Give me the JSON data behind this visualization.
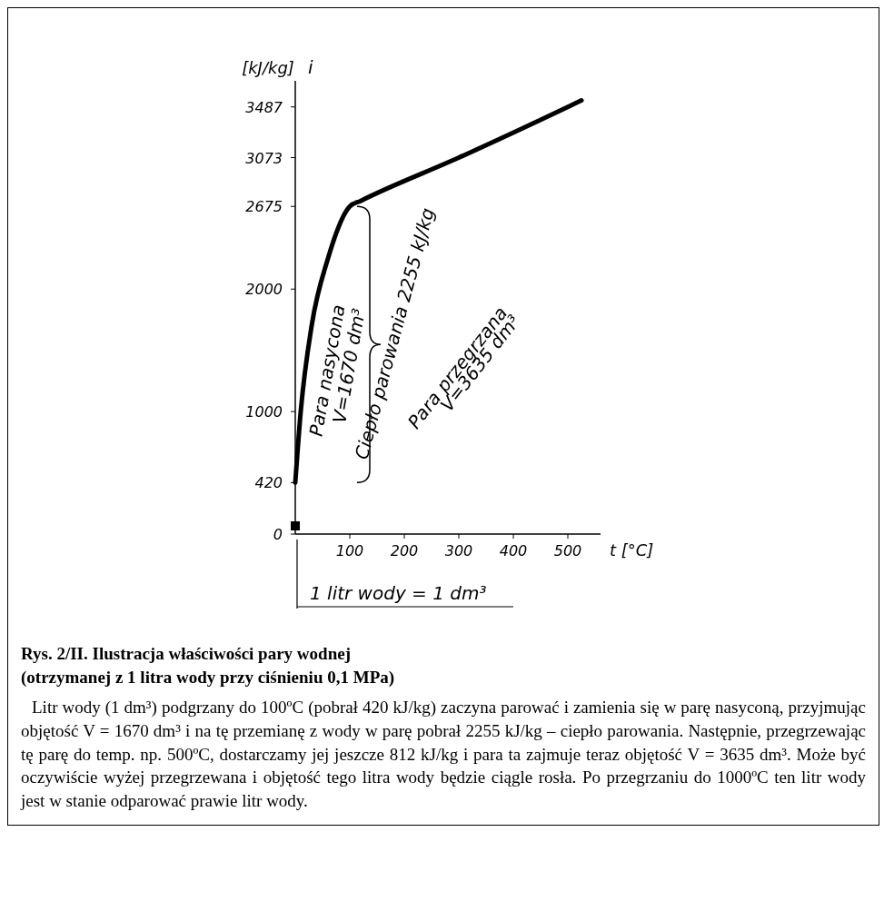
{
  "chart_data": {
    "type": "line",
    "title": "Rys. 2/II. Ilustracja właściwości pary wodnej",
    "subtitle": "(otrzymanej z 1 litra wody przy ciśnieniu 0,1 MPa)",
    "xlabel": "t [°C]",
    "ylabel": "[kJ/kg]",
    "x": [
      0,
      10,
      30,
      60,
      100,
      120,
      300,
      500,
      525
    ],
    "series": [
      {
        "color": "#000000",
        "values": [
          420,
          1000,
          1700,
          2250,
          2675,
          2720,
          3073,
          3487,
          3540
        ]
      }
    ],
    "xlim": [
      0,
      560
    ],
    "ylim": [
      0,
      3700
    ],
    "xticks": [
      100,
      200,
      300,
      400,
      500
    ],
    "yticks": [
      0,
      420,
      1000,
      2000,
      2675,
      3073,
      3487
    ],
    "marker": "none",
    "line_style": "solid",
    "grid": false,
    "annotations": [
      "i",
      "Para nasycona",
      "V=1670 dm³",
      "Ciepło parowania 2255 kJ/kg",
      "Para przegrzana",
      "V=3635 dm³",
      "1 litr wody = 1 dm³",
      "Litr wody (1 dm³) podgrzany do 100ºC (pobrał 420 kJ/kg) zaczyna parować i zamienia się w parę nasyconą, przyjmując objętość V = 1670 dm³ i na tę przemianę z wody w parę pobrał 2255 kJ/kg – ciepło parowania. Następnie, przegrzewając tę parę do temp. np. 500ºC, dostarczamy jej jeszcze 812 kJ/kg i para ta zajmuje teraz objętość V = 3635 dm³. Może być oczywiście wyżej przegrzewana i objętość tego litra wody będzie ciągle rosła. Po przegrzaniu do 1000ºC ten litr wody jest w stanie odparować prawie litr wody."
    ]
  }
}
